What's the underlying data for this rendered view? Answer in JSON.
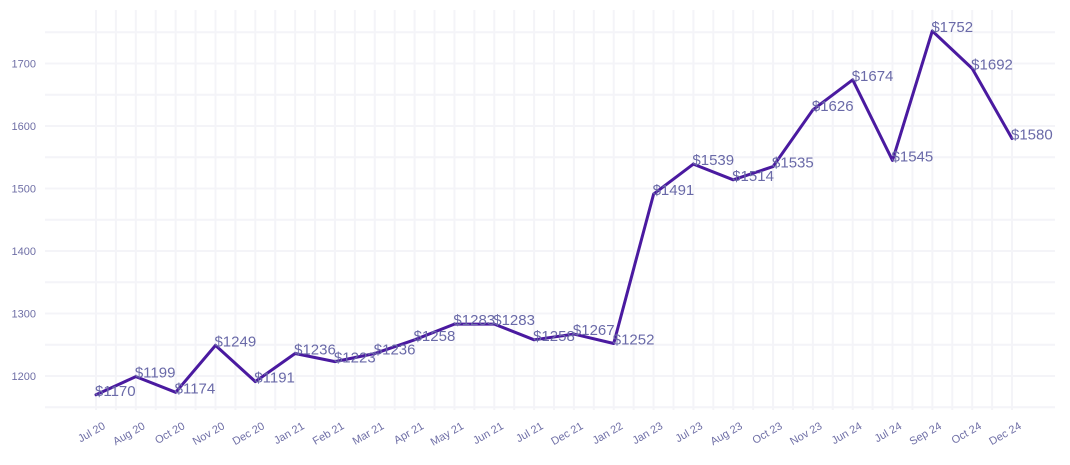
{
  "chart_data": {
    "type": "line",
    "categories": [
      "Jul 20",
      "Aug 20",
      "Oct 20",
      "Nov 20",
      "Dec 20",
      "Jan 21",
      "Feb 21",
      "Mar 21",
      "Apr 21",
      "May 21",
      "Jun 21",
      "Jul 21",
      "Dec 21",
      "Jan 22",
      "Jan 23",
      "Jul 23",
      "Aug 23",
      "Oct 23",
      "Nov 23",
      "Jun 24",
      "Jul 24",
      "Sep 24",
      "Oct 24",
      "Dec 24"
    ],
    "series": [
      {
        "values": [
          1170,
          1199,
          1174,
          1249,
          1191,
          1236,
          1223,
          1236,
          1258,
          1283,
          1283,
          1258,
          1267,
          1252,
          1491,
          1539,
          1514,
          1535,
          1626,
          1674,
          1545,
          1752,
          1692,
          1580
        ],
        "labels": [
          "$1170",
          "$1199",
          "$1174",
          "$1249",
          "$1191",
          "$1236",
          "$1223",
          "$1236",
          "$1258",
          "$1283",
          "$1283",
          "$1258",
          "$1267",
          "$1252",
          "$1491",
          "$1539",
          "$1514",
          "$1535",
          "$1626",
          "$1674",
          "$1545",
          "$1752",
          "$1692",
          "$1580"
        ]
      }
    ],
    "ylim": [
      1135,
      1770
    ],
    "yticks": [
      1200,
      1300,
      1400,
      1500,
      1600,
      1700
    ],
    "grid": true,
    "line_color": "#4a1aa0",
    "label_color": "#6a6aa8",
    "tick_color": "#6f6fa6",
    "grid_color": "#f4f4f8"
  }
}
